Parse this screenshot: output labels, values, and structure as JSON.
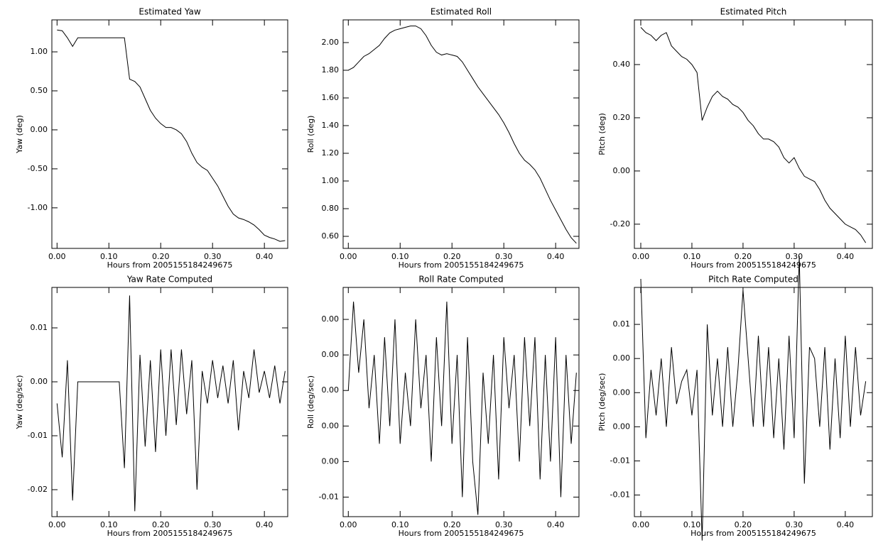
{
  "chart_data": [
    {
      "type": "line",
      "title": "Estimated Yaw",
      "x_label": "Hours from 2005155184249675",
      "y_label": "Yaw (deg)",
      "color": "#000000",
      "x": [
        0,
        0.01,
        0.02,
        0.03,
        0.04,
        0.05,
        0.06,
        0.07,
        0.08,
        0.09,
        0.1,
        0.11,
        0.12,
        0.13,
        0.14,
        0.15,
        0.16,
        0.17,
        0.18,
        0.19,
        0.2,
        0.21,
        0.22,
        0.23,
        0.24,
        0.25,
        0.26,
        0.27,
        0.28,
        0.29,
        0.3,
        0.31,
        0.32,
        0.33,
        0.34,
        0.35,
        0.36,
        0.37,
        0.38,
        0.39,
        0.4,
        0.41,
        0.42,
        0.43,
        0.44
      ],
      "values": [
        1.28,
        1.27,
        1.18,
        1.07,
        1.18,
        1.18,
        1.18,
        1.18,
        1.18,
        1.18,
        1.18,
        1.18,
        1.18,
        1.18,
        0.65,
        0.62,
        0.55,
        0.4,
        0.25,
        0.15,
        0.08,
        0.03,
        0.03,
        0,
        -0.05,
        -0.15,
        -0.3,
        -0.42,
        -0.48,
        -0.52,
        -0.62,
        -0.72,
        -0.85,
        -0.98,
        -1.08,
        -1.13,
        -1.15,
        -1.18,
        -1.22,
        -1.28,
        -1.35,
        -1.38,
        -1.4,
        -1.43,
        -1.42
      ],
      "xlim": [
        -0.01,
        0.445
      ],
      "ylim": [
        -1.52,
        1.41
      ],
      "xticks": [
        {
          "value": 0,
          "label": "0.00"
        },
        {
          "value": 0.1,
          "label": "0.10"
        },
        {
          "value": 0.2,
          "label": "0.20"
        },
        {
          "value": 0.3,
          "label": "0.30"
        },
        {
          "value": 0.4,
          "label": "0.40"
        }
      ],
      "yticks": [
        {
          "value": -1,
          "label": "-1.00"
        },
        {
          "value": -0.5,
          "label": "-0.50"
        },
        {
          "value": 0,
          "label": "0.00"
        },
        {
          "value": 0.5,
          "label": "0.50"
        },
        {
          "value": 1,
          "label": "1.00"
        }
      ]
    },
    {
      "type": "line",
      "title": "Estimated Roll",
      "x_label": "Hours from 2005155184249675",
      "y_label": "Roll (deg)",
      "color": "#000000",
      "x": [
        0,
        0.01,
        0.02,
        0.03,
        0.04,
        0.05,
        0.06,
        0.07,
        0.08,
        0.09,
        0.1,
        0.11,
        0.12,
        0.13,
        0.14,
        0.15,
        0.16,
        0.17,
        0.18,
        0.19,
        0.2,
        0.21,
        0.22,
        0.23,
        0.24,
        0.25,
        0.26,
        0.27,
        0.28,
        0.29,
        0.3,
        0.31,
        0.32,
        0.33,
        0.34,
        0.35,
        0.36,
        0.37,
        0.38,
        0.39,
        0.4,
        0.41,
        0.42,
        0.43,
        0.44
      ],
      "values": [
        1.8,
        1.82,
        1.86,
        1.9,
        1.92,
        1.95,
        1.98,
        2.03,
        2.07,
        2.09,
        2.1,
        2.11,
        2.12,
        2.12,
        2.1,
        2.05,
        1.98,
        1.93,
        1.91,
        1.92,
        1.91,
        1.9,
        1.86,
        1.8,
        1.74,
        1.68,
        1.63,
        1.58,
        1.53,
        1.48,
        1.42,
        1.35,
        1.27,
        1.2,
        1.15,
        1.12,
        1.08,
        1.02,
        0.94,
        0.86,
        0.79,
        0.72,
        0.65,
        0.59,
        0.55
      ],
      "xlim": [
        -0.01,
        0.445
      ],
      "ylim": [
        0.513,
        2.164
      ],
      "xticks": [
        {
          "value": 0,
          "label": "0.00"
        },
        {
          "value": 0.1,
          "label": "0.10"
        },
        {
          "value": 0.2,
          "label": "0.20"
        },
        {
          "value": 0.3,
          "label": "0.30"
        },
        {
          "value": 0.4,
          "label": "0.40"
        }
      ],
      "yticks": [
        {
          "value": 0.6,
          "label": "0.60"
        },
        {
          "value": 0.8,
          "label": "0.80"
        },
        {
          "value": 1,
          "label": "1.00"
        },
        {
          "value": 1.2,
          "label": "1.20"
        },
        {
          "value": 1.4,
          "label": "1.40"
        },
        {
          "value": 1.6,
          "label": "1.60"
        },
        {
          "value": 1.8,
          "label": "1.80"
        },
        {
          "value": 2,
          "label": "2.00"
        }
      ]
    },
    {
      "type": "line",
      "title": "Estimated Pitch",
      "x_label": "Hours from 2005155184249675",
      "y_label": "Pitch (deg)",
      "color": "#000000",
      "x": [
        0,
        0.01,
        0.02,
        0.03,
        0.04,
        0.05,
        0.06,
        0.07,
        0.08,
        0.09,
        0.1,
        0.11,
        0.12,
        0.13,
        0.14,
        0.15,
        0.16,
        0.17,
        0.18,
        0.19,
        0.2,
        0.21,
        0.22,
        0.23,
        0.24,
        0.25,
        0.26,
        0.27,
        0.28,
        0.29,
        0.3,
        0.31,
        0.32,
        0.33,
        0.34,
        0.35,
        0.36,
        0.37,
        0.38,
        0.39,
        0.4,
        0.41,
        0.42,
        0.43,
        0.44
      ],
      "values": [
        0.54,
        0.52,
        0.51,
        0.49,
        0.51,
        0.52,
        0.47,
        0.45,
        0.43,
        0.42,
        0.4,
        0.37,
        0.19,
        0.24,
        0.28,
        0.3,
        0.28,
        0.27,
        0.25,
        0.24,
        0.22,
        0.19,
        0.17,
        0.14,
        0.12,
        0.12,
        0.11,
        0.09,
        0.05,
        0.03,
        0.05,
        0.01,
        -0.02,
        -0.03,
        -0.04,
        -0.07,
        -0.11,
        -0.14,
        -0.16,
        -0.18,
        -0.2,
        -0.21,
        -0.22,
        -0.24,
        -0.27
      ],
      "xlim": [
        -0.0125,
        0.453
      ],
      "ylim": [
        -0.291,
        0.568
      ],
      "xticks": [
        {
          "value": 0,
          "label": "0.00"
        },
        {
          "value": 0.1,
          "label": "0.10"
        },
        {
          "value": 0.2,
          "label": "0.20"
        },
        {
          "value": 0.3,
          "label": "0.30"
        },
        {
          "value": 0.4,
          "label": "0.40"
        }
      ],
      "yticks": [
        {
          "value": -0.2,
          "label": "-0.20"
        },
        {
          "value": 0,
          "label": "0.00"
        },
        {
          "value": 0.2,
          "label": "0.20"
        },
        {
          "value": 0.4,
          "label": "0.40"
        }
      ]
    },
    {
      "type": "line",
      "title": "Yaw Rate Computed",
      "x_label": "Hours from 2005155184249675",
      "y_label": "Yaw (deg/sec)",
      "color": "#000000",
      "x": [
        0,
        0.01,
        0.02,
        0.03,
        0.04,
        0.05,
        0.06,
        0.07,
        0.08,
        0.09,
        0.1,
        0.11,
        0.12,
        0.13,
        0.14,
        0.15,
        0.16,
        0.17,
        0.18,
        0.19,
        0.2,
        0.21,
        0.22,
        0.23,
        0.24,
        0.25,
        0.26,
        0.27,
        0.28,
        0.29,
        0.3,
        0.31,
        0.32,
        0.33,
        0.34,
        0.35,
        0.36,
        0.37,
        0.38,
        0.39,
        0.4,
        0.41,
        0.42,
        0.43,
        0.44
      ],
      "values": [
        -0.004,
        -0.014,
        0.004,
        -0.022,
        0,
        0,
        0,
        0,
        0,
        0,
        0,
        0,
        0,
        -0.016,
        0.016,
        -0.024,
        0.005,
        -0.012,
        0.004,
        -0.013,
        0.006,
        -0.01,
        0.006,
        -0.008,
        0.006,
        -0.006,
        0.004,
        -0.02,
        0.002,
        -0.004,
        0.004,
        -0.003,
        0.003,
        -0.004,
        0.004,
        -0.009,
        0.002,
        -0.003,
        0.006,
        -0.002,
        0.002,
        -0.003,
        0.003,
        -0.004,
        0.002
      ],
      "xlim": [
        -0.01,
        0.445
      ],
      "ylim": [
        -0.025,
        0.0175
      ],
      "xticks": [
        {
          "value": 0,
          "label": "0.00"
        },
        {
          "value": 0.1,
          "label": "0.10"
        },
        {
          "value": 0.2,
          "label": "0.20"
        },
        {
          "value": 0.3,
          "label": "0.30"
        },
        {
          "value": 0.4,
          "label": "0.40"
        }
      ],
      "yticks": [
        -0.02,
        -0.01,
        {
          "value": 0,
          "label": "0.00"
        },
        0.01
      ]
    },
    {
      "type": "line",
      "title": "Roll Rate Computed",
      "x_label": "Hours from 2005155184249675",
      "y_label": "Roll (deg/sec)",
      "color": "#000000",
      "x": [
        0,
        0.01,
        0.02,
        0.03,
        0.04,
        0.05,
        0.06,
        0.07,
        0.08,
        0.09,
        0.1,
        0.11,
        0.12,
        0.13,
        0.14,
        0.15,
        0.16,
        0.17,
        0.18,
        0.19,
        0.2,
        0.21,
        0.22,
        0.23,
        0.24,
        0.25,
        0.26,
        0.27,
        0.28,
        0.29,
        0.3,
        0.31,
        0.32,
        0.33,
        0.34,
        0.35,
        0.36,
        0.37,
        0.38,
        0.39,
        0.4,
        0.41,
        0.42,
        0.43,
        0.44
      ],
      "values": [
        0,
        0.005,
        0.001,
        0.004,
        -0.001,
        0.002,
        -0.003,
        0.003,
        -0.002,
        0.004,
        -0.003,
        0.001,
        -0.002,
        0.004,
        -0.001,
        0.002,
        -0.004,
        0.003,
        -0.002,
        0.005,
        -0.003,
        0.002,
        -0.006,
        0.003,
        -0.004,
        -0.007,
        0.001,
        -0.003,
        0.002,
        -0.005,
        0.003,
        -0.001,
        0.002,
        -0.004,
        0.003,
        -0.002,
        0.003,
        -0.005,
        0.002,
        -0.004,
        0.003,
        -0.006,
        0.002,
        -0.003,
        0.001
      ],
      "xlim": [
        -0.01,
        0.445
      ],
      "ylim": [
        -0.0071,
        0.0058
      ],
      "xticks": [
        {
          "value": 0,
          "label": "0.00"
        },
        {
          "value": 0.1,
          "label": "0.10"
        },
        {
          "value": 0.2,
          "label": "0.20"
        },
        {
          "value": 0.3,
          "label": "0.30"
        },
        {
          "value": 0.4,
          "label": "0.40"
        }
      ],
      "yticks": [
        {
          "value": -0.006,
          "label": "-0.01"
        },
        {
          "value": -0.004,
          "label": "0.00"
        },
        {
          "value": -0.002,
          "label": "0.00"
        },
        {
          "value": 0,
          "label": "0.00"
        },
        {
          "value": 0.002,
          "label": "0.00"
        },
        {
          "value": 0.004,
          "label": "0.00"
        }
      ]
    },
    {
      "type": "line",
      "title": "Pitch Rate Computed",
      "x_label": "Hours from 2005155184249675",
      "y_label": "Pitch (deg/sec)",
      "color": "#000000",
      "x": [
        0,
        0.01,
        0.02,
        0.03,
        0.04,
        0.05,
        0.06,
        0.07,
        0.08,
        0.09,
        0.1,
        0.11,
        0.12,
        0.13,
        0.14,
        0.15,
        0.16,
        0.17,
        0.18,
        0.19,
        0.2,
        0.21,
        0.22,
        0.23,
        0.24,
        0.25,
        0.26,
        0.27,
        0.28,
        0.29,
        0.3,
        0.31,
        0.32,
        0.33,
        0.34,
        0.35,
        0.36,
        0.37,
        0.38,
        0.39,
        0.4,
        0.41,
        0.42,
        0.43,
        0.44
      ],
      "values": [
        0.01,
        -0.004,
        0.002,
        -0.002,
        0.003,
        -0.003,
        0.004,
        -0.001,
        0.001,
        0.002,
        -0.002,
        0.002,
        -0.013,
        0.006,
        -0.002,
        0.003,
        -0.003,
        0.004,
        -0.003,
        0.002,
        0.009,
        0.003,
        -0.003,
        0.005,
        -0.003,
        0.004,
        -0.004,
        0.003,
        -0.005,
        0.005,
        -0.004,
        0.012,
        -0.008,
        0.004,
        0.003,
        -0.003,
        0.004,
        -0.005,
        0.003,
        -0.004,
        0.005,
        -0.003,
        0.004,
        -0.002,
        0.001
      ],
      "xlim": [
        -0.0125,
        0.453
      ],
      "ylim": [
        -0.0109,
        0.00925
      ],
      "xticks": [
        {
          "value": 0,
          "label": "0.00"
        },
        {
          "value": 0.1,
          "label": "0.10"
        },
        {
          "value": 0.2,
          "label": "0.20"
        },
        {
          "value": 0.3,
          "label": "0.30"
        },
        {
          "value": 0.4,
          "label": "0.40"
        }
      ],
      "yticks": [
        {
          "value": -0.009,
          "label": "-0.01"
        },
        {
          "value": -0.006,
          "label": "-0.01"
        },
        {
          "value": -0.003,
          "label": "0.00"
        },
        {
          "value": 0,
          "label": "0.00"
        },
        {
          "value": 0.003,
          "label": "0.00"
        },
        {
          "value": 0.006,
          "label": "0.01"
        }
      ]
    }
  ]
}
